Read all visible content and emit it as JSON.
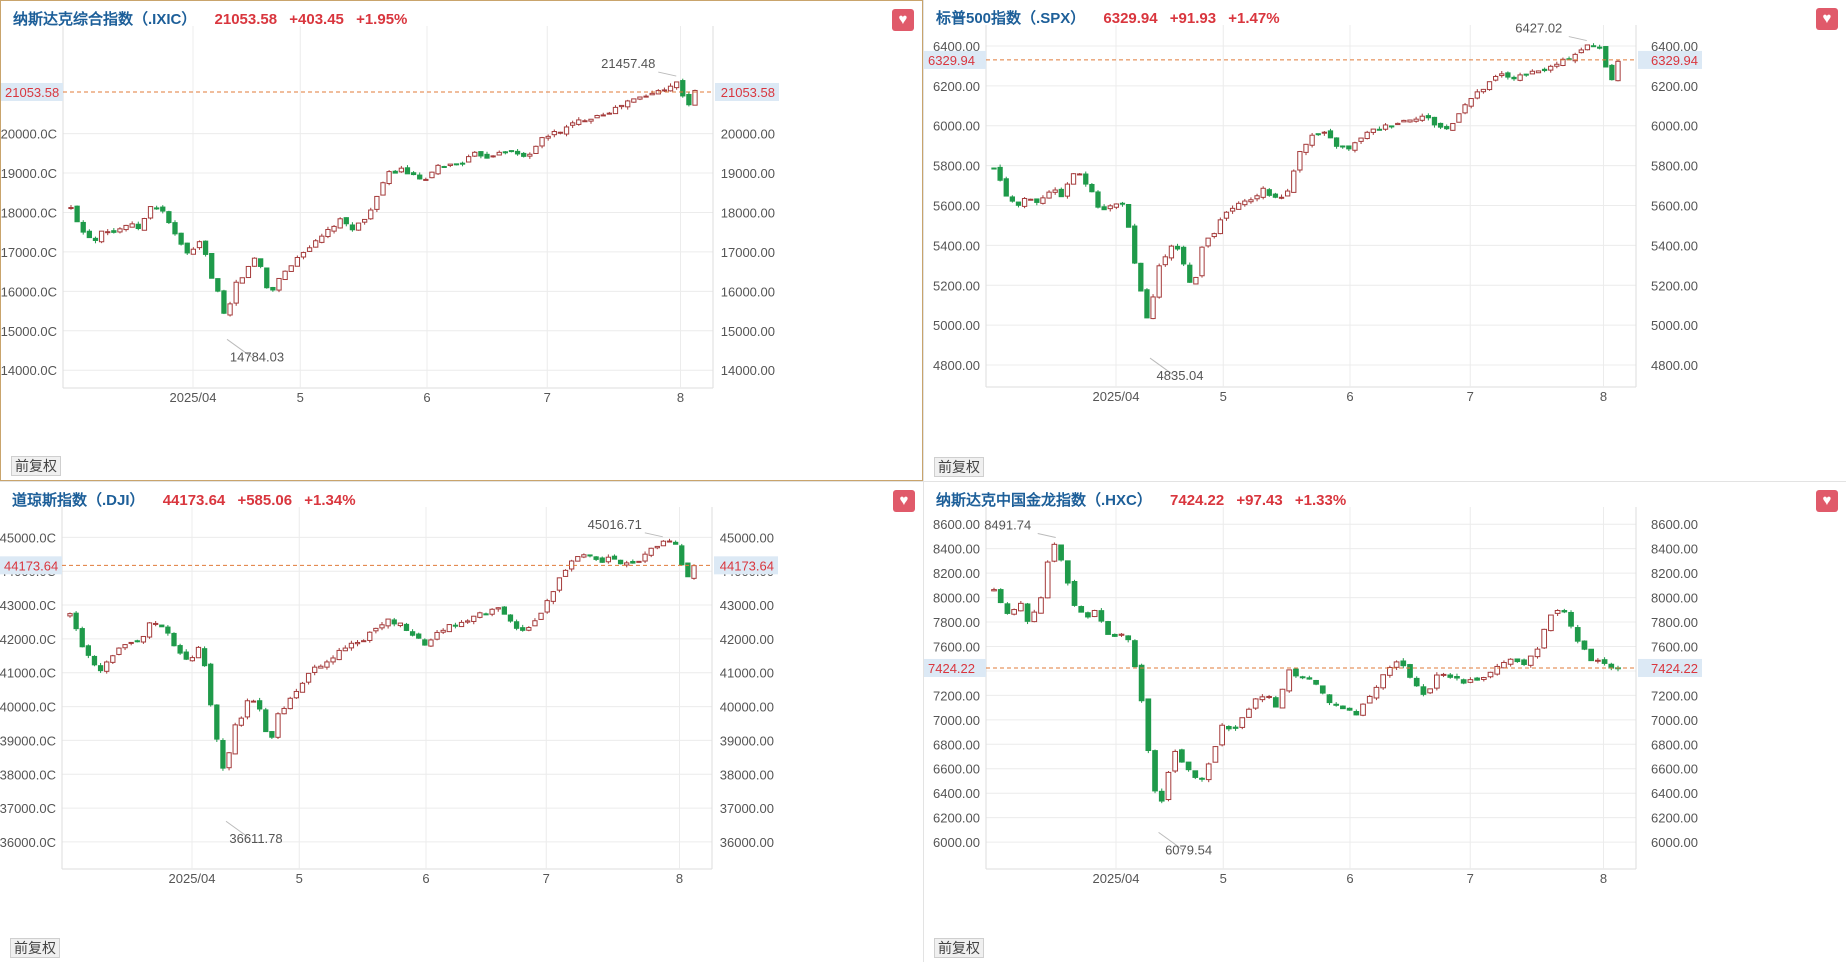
{
  "colors": {
    "up": "#a53b3b",
    "down": "#1f9a4a",
    "grid": "#ececec",
    "axis_text": "#555555",
    "current_line": "#e07b3a",
    "current_bg": "#dce9f5",
    "current_text": "#d9363e",
    "name": "#1d5f99",
    "quote": "#d9363e"
  },
  "panels": [
    {
      "name": "纳斯达克综合指数（.IXIC）",
      "price": "21053.58",
      "change": "+403.45",
      "pct": "+1.95%",
      "badge": "前复权",
      "favorite_icon": "heart-icon"
    },
    {
      "name": "标普500指数（.SPX）",
      "price": "6329.94",
      "change": "+91.93",
      "pct": "+1.47%",
      "badge": "前复权",
      "favorite_icon": "heart-icon"
    },
    {
      "name": "道琼斯指数（.DJI）",
      "price": "44173.64",
      "change": "+585.06",
      "pct": "+1.34%",
      "badge": "前复权",
      "favorite_icon": "heart-icon"
    },
    {
      "name": "纳斯达克中国金龙指数（.HXC）",
      "price": "7424.22",
      "change": "+97.43",
      "pct": "+1.33%",
      "badge": "前复权",
      "favorite_icon": "heart-icon"
    }
  ],
  "chart_data": [
    {
      "type": "candlestick",
      "title": "纳斯达克综合指数（.IXIC）",
      "x_tick_labels": [
        "2025/04",
        "5",
        "6",
        "7",
        "8"
      ],
      "y_ticks": [
        "14000.0C",
        "15000.0C",
        "16000.0C",
        "17000.0C",
        "18000.0C",
        "19000.0C",
        "20000.0C"
      ],
      "y_ticks_right": [
        "14000.00",
        "15000.00",
        "16000.00",
        "17000.00",
        "18000.00",
        "19000.00",
        "20000.00"
      ],
      "ylim": [
        13550,
        22600
      ],
      "current": 21053.58,
      "current_label": "21053.58",
      "annotations": [
        {
          "text": "21457.48",
          "value": 21457.48
        },
        {
          "text": "14784.03",
          "value": 14784.03
        }
      ],
      "shape": [
        [
          0,
          18100
        ],
        [
          2,
          17500
        ],
        [
          4,
          17300
        ],
        [
          5,
          17600
        ],
        [
          7,
          17500
        ],
        [
          9,
          17700
        ],
        [
          11,
          17600
        ],
        [
          13,
          18200
        ],
        [
          15,
          18000
        ],
        [
          17,
          17300
        ],
        [
          19,
          16900
        ],
        [
          21,
          17300
        ],
        [
          22,
          16600
        ],
        [
          24,
          15800
        ],
        [
          25,
          15000
        ],
        [
          26,
          16300
        ],
        [
          27,
          16100
        ],
        [
          28,
          16600
        ],
        [
          30,
          16900
        ],
        [
          31,
          16200
        ],
        [
          32,
          15900
        ],
        [
          33,
          16300
        ],
        [
          35,
          16600
        ],
        [
          37,
          17000
        ],
        [
          39,
          17200
        ],
        [
          41,
          17500
        ],
        [
          43,
          17800
        ],
        [
          45,
          17600
        ],
        [
          47,
          17800
        ],
        [
          49,
          18400
        ],
        [
          51,
          19000
        ],
        [
          53,
          19100
        ],
        [
          55,
          18900
        ],
        [
          57,
          18800
        ],
        [
          59,
          19200
        ],
        [
          61,
          19200
        ],
        [
          63,
          19300
        ],
        [
          65,
          19500
        ],
        [
          67,
          19400
        ],
        [
          69,
          19600
        ],
        [
          71,
          19500
        ],
        [
          73,
          19400
        ],
        [
          75,
          19800
        ],
        [
          77,
          20000
        ],
        [
          79,
          20100
        ],
        [
          81,
          20300
        ],
        [
          83,
          20400
        ],
        [
          85,
          20500
        ],
        [
          87,
          20600
        ],
        [
          89,
          20800
        ],
        [
          91,
          20900
        ],
        [
          93,
          21000
        ],
        [
          95,
          21150
        ],
        [
          97,
          21300
        ],
        [
          98,
          21000
        ],
        [
          99,
          20750
        ],
        [
          100,
          21050
        ]
      ]
    },
    {
      "type": "candlestick",
      "title": "标普500指数（.SPX）",
      "x_tick_labels": [
        "2025/04",
        "5",
        "6",
        "7",
        "8"
      ],
      "y_ticks": [
        "4800.00",
        "5000.00",
        "5200.00",
        "5400.00",
        "5600.00",
        "5800.00",
        "6000.00",
        "6200.00",
        "6400.00"
      ],
      "y_ticks_right": [
        "4800.00",
        "5000.00",
        "5200.00",
        "5400.00",
        "5600.00",
        "5800.00",
        "6000.00",
        "6200.00",
        "6400.00"
      ],
      "ylim": [
        4690,
        6480
      ],
      "current": 6329.94,
      "current_label": "6329.94",
      "annotations": [
        {
          "text": "6427.02",
          "value": 6427.02
        },
        {
          "text": "4835.04",
          "value": 4835.04
        }
      ],
      "shape": [
        [
          0,
          5780
        ],
        [
          2,
          5650
        ],
        [
          4,
          5600
        ],
        [
          5,
          5640
        ],
        [
          7,
          5620
        ],
        [
          9,
          5680
        ],
        [
          11,
          5650
        ],
        [
          13,
          5780
        ],
        [
          15,
          5700
        ],
        [
          17,
          5580
        ],
        [
          19,
          5600
        ],
        [
          21,
          5620
        ],
        [
          22,
          5380
        ],
        [
          24,
          5100
        ],
        [
          25,
          4980
        ],
        [
          26,
          5300
        ],
        [
          27,
          5280
        ],
        [
          28,
          5400
        ],
        [
          30,
          5360
        ],
        [
          31,
          5250
        ],
        [
          32,
          5150
        ],
        [
          33,
          5380
        ],
        [
          35,
          5450
        ],
        [
          37,
          5560
        ],
        [
          39,
          5600
        ],
        [
          41,
          5620
        ],
        [
          43,
          5680
        ],
        [
          45,
          5640
        ],
        [
          47,
          5660
        ],
        [
          49,
          5880
        ],
        [
          51,
          5950
        ],
        [
          53,
          5960
        ],
        [
          55,
          5900
        ],
        [
          57,
          5880
        ],
        [
          59,
          5950
        ],
        [
          61,
          5980
        ],
        [
          63,
          6000
        ],
        [
          65,
          6020
        ],
        [
          67,
          6040
        ],
        [
          69,
          6050
        ],
        [
          71,
          6000
        ],
        [
          73,
          5980
        ],
        [
          75,
          6100
        ],
        [
          77,
          6150
        ],
        [
          79,
          6200
        ],
        [
          81,
          6260
        ],
        [
          83,
          6240
        ],
        [
          85,
          6250
        ],
        [
          87,
          6270
        ],
        [
          89,
          6290
        ],
        [
          91,
          6320
        ],
        [
          93,
          6360
        ],
        [
          95,
          6400
        ],
        [
          97,
          6400
        ],
        [
          98,
          6300
        ],
        [
          99,
          6240
        ],
        [
          100,
          6330
        ]
      ]
    },
    {
      "type": "candlestick",
      "title": "道琼斯指数（.DJI）",
      "x_tick_labels": [
        "2025/04",
        "5",
        "6",
        "7",
        "8"
      ],
      "y_ticks": [
        "36000.0C",
        "37000.0C",
        "38000.0C",
        "39000.0C",
        "40000.0C",
        "41000.0C",
        "42000.0C",
        "43000.0C",
        "44000.0C",
        "45000.0C"
      ],
      "y_ticks_right": [
        "36000.00",
        "37000.00",
        "38000.00",
        "39000.00",
        "40000.00",
        "41000.00",
        "42000.00",
        "43000.00",
        "44000.00",
        "45000.00"
      ],
      "ylim": [
        35200,
        45750
      ],
      "current": 44173.64,
      "current_label": "44173.64",
      "annotations": [
        {
          "text": "45016.71",
          "value": 45016.71
        },
        {
          "text": "36611.78",
          "value": 36611.78
        }
      ],
      "shape": [
        [
          0,
          42700
        ],
        [
          2,
          41800
        ],
        [
          4,
          41200
        ],
        [
          5,
          41000
        ],
        [
          7,
          41600
        ],
        [
          9,
          41800
        ],
        [
          11,
          41900
        ],
        [
          13,
          42500
        ],
        [
          15,
          42400
        ],
        [
          17,
          41700
        ],
        [
          19,
          41300
        ],
        [
          21,
          41900
        ],
        [
          22,
          40600
        ],
        [
          24,
          38500
        ],
        [
          25,
          37800
        ],
        [
          26,
          39500
        ],
        [
          27,
          39300
        ],
        [
          28,
          40200
        ],
        [
          30,
          40200
        ],
        [
          31,
          39500
        ],
        [
          32,
          38800
        ],
        [
          33,
          39700
        ],
        [
          35,
          40100
        ],
        [
          37,
          40700
        ],
        [
          39,
          41100
        ],
        [
          41,
          41300
        ],
        [
          43,
          41600
        ],
        [
          45,
          41800
        ],
        [
          47,
          42000
        ],
        [
          49,
          42300
        ],
        [
          51,
          42600
        ],
        [
          53,
          42400
        ],
        [
          55,
          42100
        ],
        [
          57,
          41800
        ],
        [
          59,
          42200
        ],
        [
          61,
          42400
        ],
        [
          63,
          42500
        ],
        [
          65,
          42700
        ],
        [
          67,
          42800
        ],
        [
          69,
          42900
        ],
        [
          71,
          42400
        ],
        [
          73,
          42200
        ],
        [
          75,
          42600
        ],
        [
          77,
          43300
        ],
        [
          79,
          44000
        ],
        [
          81,
          44400
        ],
        [
          83,
          44500
        ],
        [
          85,
          44300
        ],
        [
          87,
          44400
        ],
        [
          89,
          44200
        ],
        [
          91,
          44300
        ],
        [
          93,
          44600
        ],
        [
          95,
          44900
        ],
        [
          97,
          44800
        ],
        [
          98,
          44200
        ],
        [
          99,
          43800
        ],
        [
          100,
          44170
        ]
      ]
    },
    {
      "type": "candlestick",
      "title": "纳斯达克中国金龙指数（.HXC）",
      "x_tick_labels": [
        "2025/04",
        "5",
        "6",
        "7",
        "8"
      ],
      "y_ticks": [
        "6000.00",
        "6200.00",
        "6400.00",
        "6600.00",
        "6800.00",
        "7000.00",
        "7200.00",
        "7400.00",
        "7600.00",
        "7800.00",
        "8000.00",
        "8200.00",
        "8400.00",
        "8600.00"
      ],
      "y_ticks_right": [
        "6000.00",
        "6200.00",
        "6400.00",
        "6600.00",
        "6800.00",
        "7000.00",
        "7200.00",
        "7400.00",
        "7600.00",
        "7800.00",
        "8000.00",
        "8200.00",
        "8400.00",
        "8600.00"
      ],
      "ylim": [
        5780,
        8700
      ],
      "current": 7424.22,
      "current_label": "7424.22",
      "annotations": [
        {
          "text": "8491.74",
          "value": 8491.74
        },
        {
          "text": "6079.54",
          "value": 6079.54
        }
      ],
      "shape": [
        [
          0,
          8050
        ],
        [
          2,
          7850
        ],
        [
          4,
          7950
        ],
        [
          5,
          7800
        ],
        [
          7,
          8000
        ],
        [
          8,
          8350
        ],
        [
          9,
          8450
        ],
        [
          10,
          8250
        ],
        [
          12,
          7900
        ],
        [
          14,
          7850
        ],
        [
          15,
          7900
        ],
        [
          17,
          7650
        ],
        [
          19,
          7700
        ],
        [
          20,
          7600
        ],
        [
          22,
          7000
        ],
        [
          23,
          6500
        ],
        [
          24,
          6300
        ],
        [
          25,
          6400
        ],
        [
          26,
          6800
        ],
        [
          28,
          6600
        ],
        [
          30,
          6500
        ],
        [
          32,
          6700
        ],
        [
          33,
          6950
        ],
        [
          35,
          6900
        ],
        [
          36,
          7000
        ],
        [
          38,
          7150
        ],
        [
          40,
          7200
        ],
        [
          41,
          7100
        ],
        [
          43,
          7400
        ],
        [
          45,
          7350
        ],
        [
          47,
          7300
        ],
        [
          49,
          7150
        ],
        [
          51,
          7100
        ],
        [
          53,
          7050
        ],
        [
          55,
          7200
        ],
        [
          57,
          7400
        ],
        [
          59,
          7500
        ],
        [
          61,
          7300
        ],
        [
          63,
          7200
        ],
        [
          65,
          7400
        ],
        [
          67,
          7350
        ],
        [
          69,
          7300
        ],
        [
          71,
          7350
        ],
        [
          73,
          7400
        ],
        [
          75,
          7500
        ],
        [
          77,
          7450
        ],
        [
          79,
          7550
        ],
        [
          81,
          7850
        ],
        [
          83,
          7900
        ],
        [
          85,
          7650
        ],
        [
          87,
          7500
        ],
        [
          89,
          7450
        ],
        [
          91,
          7420
        ]
      ]
    }
  ]
}
